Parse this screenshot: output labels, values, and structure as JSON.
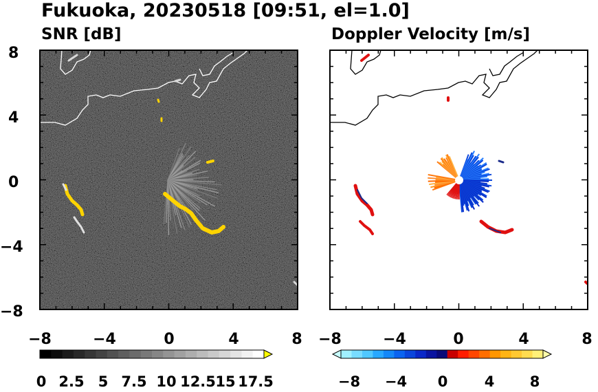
{
  "title": "Fukuoka, 20230518 [09:51, el=1.0]",
  "chart_data": [
    {
      "type": "heatmap",
      "title": "SNR [dB]",
      "xlim": [
        -8,
        8
      ],
      "ylim": [
        -8,
        8
      ],
      "x_ticks": [
        "−8",
        "−4",
        "0",
        "4",
        "8"
      ],
      "y_ticks": [
        "8",
        "4",
        "0",
        "−4",
        "−8"
      ],
      "colorbar": {
        "ticks": [
          "0",
          "2.5",
          "5",
          "7.5",
          "10",
          "12.5",
          "15",
          "17.5"
        ],
        "range": [
          0,
          20
        ],
        "extend": "max",
        "over_color": "#ffff00"
      }
    },
    {
      "type": "heatmap",
      "title": "Doppler Velocity [m/s]",
      "xlim": [
        -8,
        8
      ],
      "ylim": [
        -8,
        8
      ],
      "x_ticks": [
        "−8",
        "−4",
        "0",
        "4",
        "8"
      ],
      "y_ticks": [],
      "colorbar": {
        "ticks": [
          "−8",
          "−4",
          "0",
          "4",
          "8"
        ],
        "range": [
          -10,
          10
        ],
        "extend": "both",
        "colors": [
          "#c8ffff",
          "#a0f0ff",
          "#78dcff",
          "#50c8ff",
          "#28a8ff",
          "#1488f8",
          "#0a64f0",
          "#0a46dc",
          "#0a28c8",
          "#0a14a0",
          "#0a0a78",
          "#c80000",
          "#ff1e00",
          "#ff4600",
          "#ff6e00",
          "#ff9600",
          "#ffb414",
          "#ffc832",
          "#ffdc50",
          "#fff078",
          "#ffffaa"
        ]
      }
    }
  ]
}
